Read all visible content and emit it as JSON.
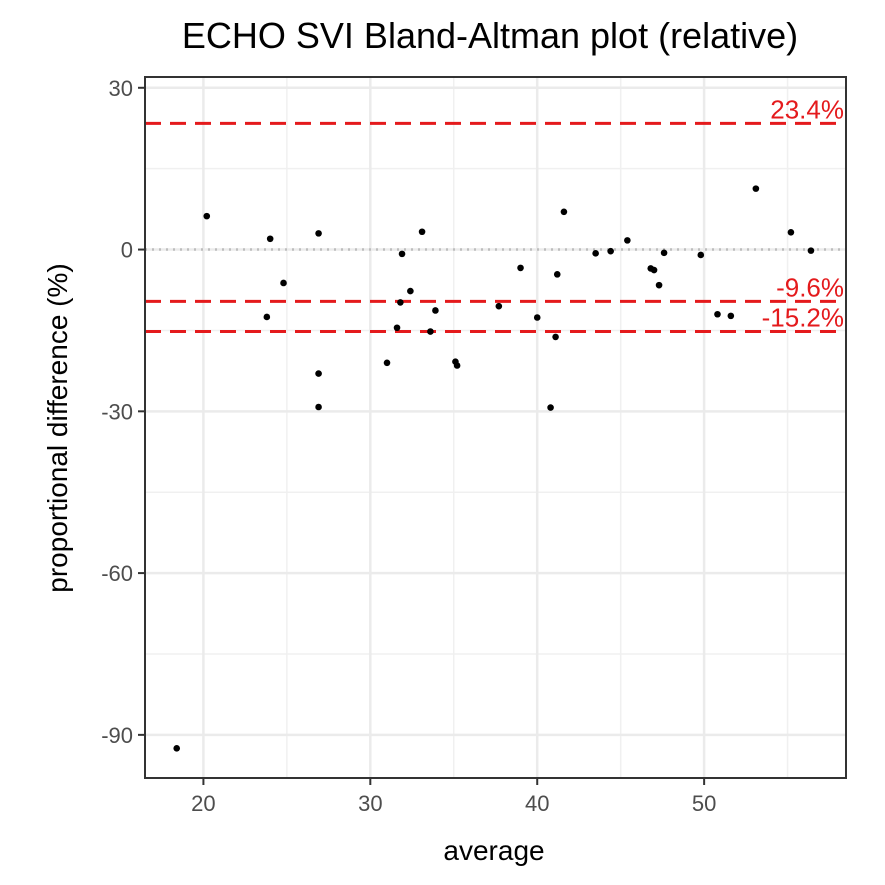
{
  "chart_data": {
    "type": "scatter",
    "title": "ECHO SVI   Bland-Altman plot (relative)",
    "xlabel": "average",
    "ylabel": "proportional difference (%)",
    "xlim": [
      16.5,
      58.5
    ],
    "ylim": [
      -98,
      32
    ],
    "x_ticks": [
      20,
      30,
      40,
      50
    ],
    "y_ticks": [
      30,
      0,
      -30,
      -60,
      -90
    ],
    "grid": true,
    "zero_line": 0,
    "reference_lines": [
      {
        "value": 23.4,
        "label": "23.4%",
        "color": "#e41a1c",
        "style": "dashed"
      },
      {
        "value": -9.6,
        "label": "-9.6%",
        "color": "#e41a1c",
        "style": "dashed"
      },
      {
        "value": -15.2,
        "label": "-15.2%",
        "color": "#e41a1c",
        "style": "dashed"
      }
    ],
    "points": [
      {
        "x": 18.4,
        "y": -92.5
      },
      {
        "x": 20.2,
        "y": 6.2
      },
      {
        "x": 23.8,
        "y": -12.5
      },
      {
        "x": 24.0,
        "y": 2.0
      },
      {
        "x": 24.8,
        "y": -6.2
      },
      {
        "x": 26.9,
        "y": 3.0
      },
      {
        "x": 26.9,
        "y": -23.0
      },
      {
        "x": 26.9,
        "y": -29.2
      },
      {
        "x": 31.0,
        "y": -21.0
      },
      {
        "x": 31.6,
        "y": -14.5
      },
      {
        "x": 31.8,
        "y": -9.8
      },
      {
        "x": 31.9,
        "y": -0.8
      },
      {
        "x": 32.4,
        "y": -7.7
      },
      {
        "x": 33.1,
        "y": 3.3
      },
      {
        "x": 33.6,
        "y": -15.2
      },
      {
        "x": 33.9,
        "y": -11.3
      },
      {
        "x": 35.1,
        "y": -20.8
      },
      {
        "x": 35.2,
        "y": -21.5
      },
      {
        "x": 37.7,
        "y": -10.5
      },
      {
        "x": 39.0,
        "y": -3.4
      },
      {
        "x": 40.0,
        "y": -12.6
      },
      {
        "x": 40.8,
        "y": -29.3
      },
      {
        "x": 41.1,
        "y": -16.2
      },
      {
        "x": 41.2,
        "y": -4.6
      },
      {
        "x": 41.6,
        "y": 7.0
      },
      {
        "x": 43.5,
        "y": -0.7
      },
      {
        "x": 44.4,
        "y": -0.3
      },
      {
        "x": 45.4,
        "y": 1.7
      },
      {
        "x": 46.8,
        "y": -3.5
      },
      {
        "x": 47.0,
        "y": -3.8
      },
      {
        "x": 47.3,
        "y": -6.6
      },
      {
        "x": 47.6,
        "y": -0.6
      },
      {
        "x": 49.8,
        "y": -1.0
      },
      {
        "x": 50.8,
        "y": -12.0
      },
      {
        "x": 51.6,
        "y": -12.3
      },
      {
        "x": 53.1,
        "y": 11.3
      },
      {
        "x": 55.2,
        "y": 3.2
      },
      {
        "x": 56.4,
        "y": -0.2
      }
    ]
  }
}
